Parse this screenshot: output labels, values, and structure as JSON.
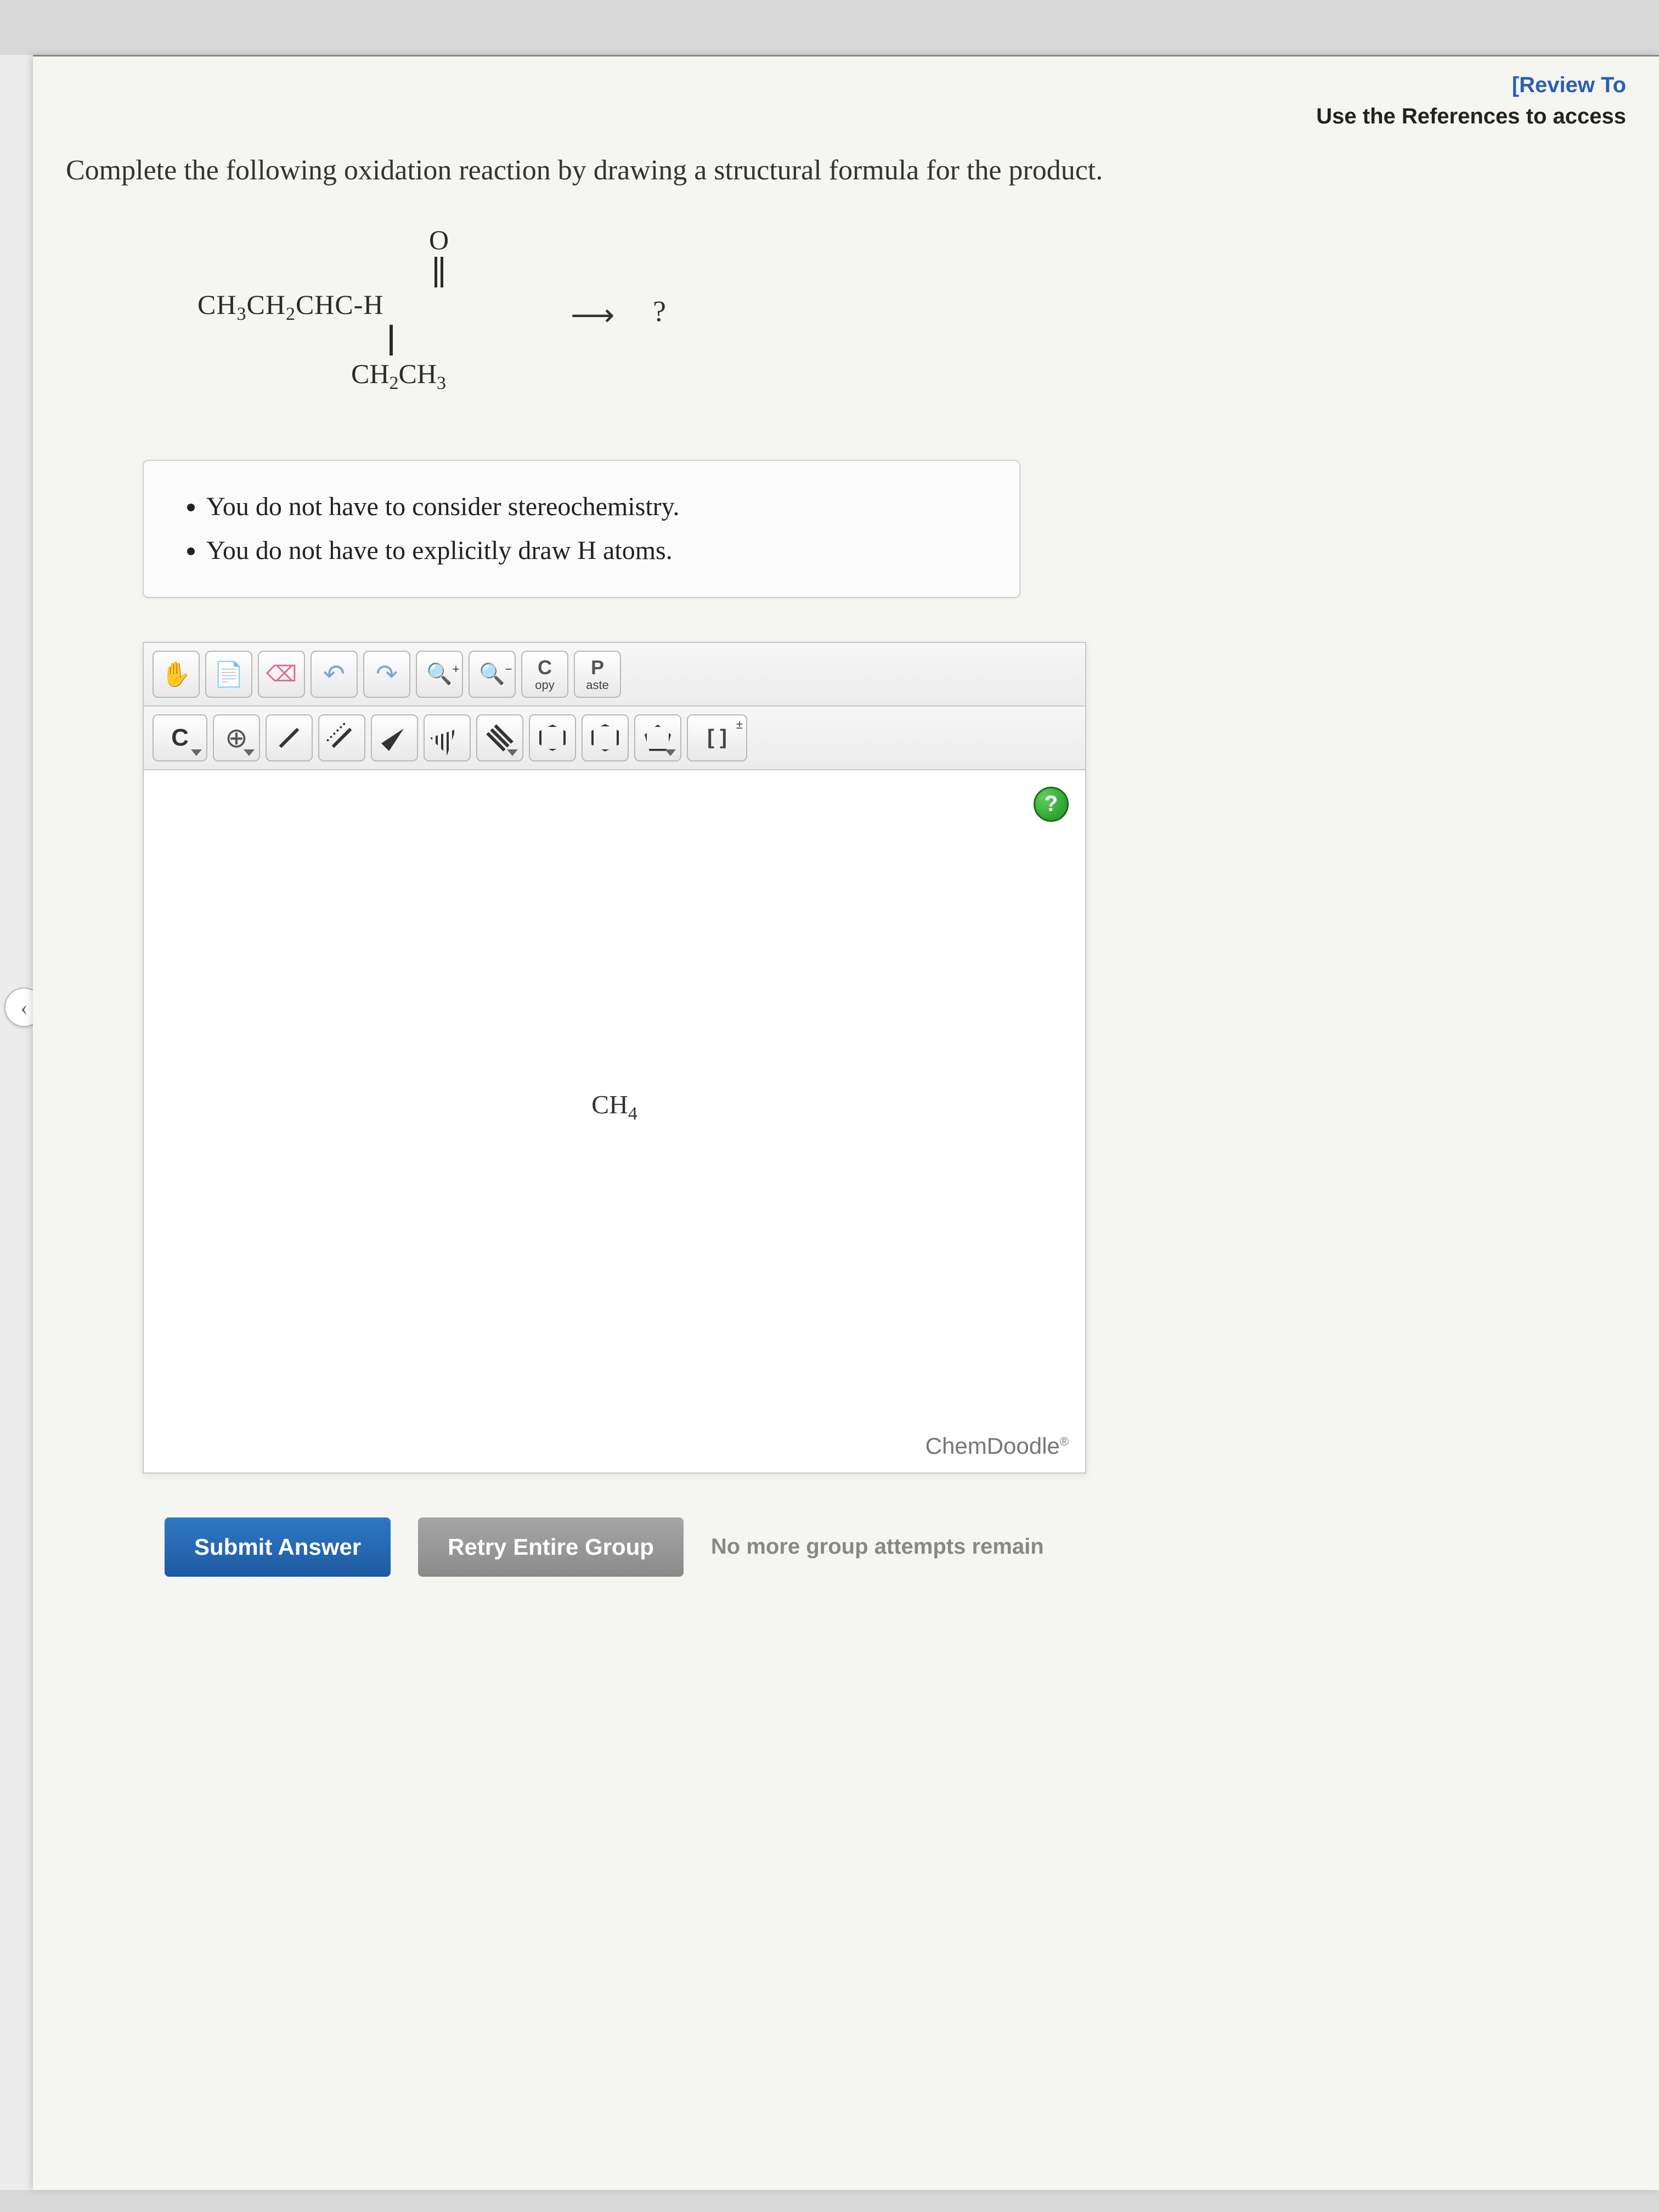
{
  "header": {
    "review_link": "[Review To",
    "references_text": "Use the References to access"
  },
  "question": {
    "stem": "Complete the following oxidation reaction by drawing a structural formula for the product.",
    "reactant_top_atom": "O",
    "reactant_main": "CH₃CH₂CHC-H",
    "reactant_branch": "CH₂CH₃",
    "arrow": "⟶",
    "product_placeholder": "?"
  },
  "hints": [
    "You do not have to consider stereochemistry.",
    "You do not have to explicitly draw H atoms."
  ],
  "editor": {
    "row1": {
      "copy_big": "C",
      "copy_small": "opy",
      "paste_big": "P",
      "paste_small": "aste"
    },
    "row2": {
      "element_label": "C"
    },
    "canvas_center_label": "CH₄",
    "help_symbol": "?",
    "brand": "ChemDoodle",
    "brand_mark": "®"
  },
  "buttons": {
    "submit": "Submit Answer",
    "retry": "Retry Entire Group",
    "attempts_msg": "No more group attempts remain"
  },
  "rail": {
    "chev": "‹"
  }
}
